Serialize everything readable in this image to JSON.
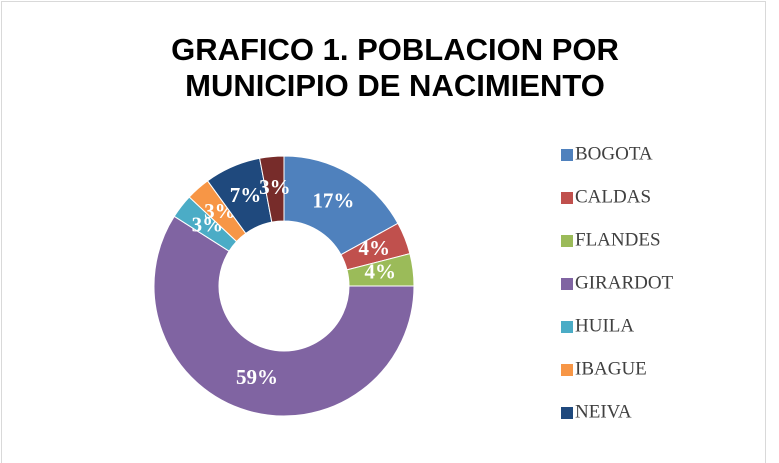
{
  "chart_data": {
    "type": "donut",
    "title": [
      "GRAFICO 1. POBLACION POR",
      "MUNICIPIO  DE NACIMIENTO"
    ],
    "categories": [
      "BOGOTA",
      "CALDAS",
      "FLANDES",
      "GIRARDOT",
      "HUILA",
      "IBAGUE",
      "NEIVA",
      null
    ],
    "values": [
      17,
      4,
      4,
      59,
      3,
      3,
      7,
      3
    ],
    "value_labels": [
      "17%",
      "4%",
      "4%",
      "59%",
      "3%",
      "3%",
      "7%",
      "3%"
    ],
    "colors": [
      "#4f81bd",
      "#c0504d",
      "#9bbb59",
      "#8064a2",
      "#4bacc6",
      "#f79646",
      "#1f497d",
      "#772c2a"
    ],
    "legend": "right"
  }
}
